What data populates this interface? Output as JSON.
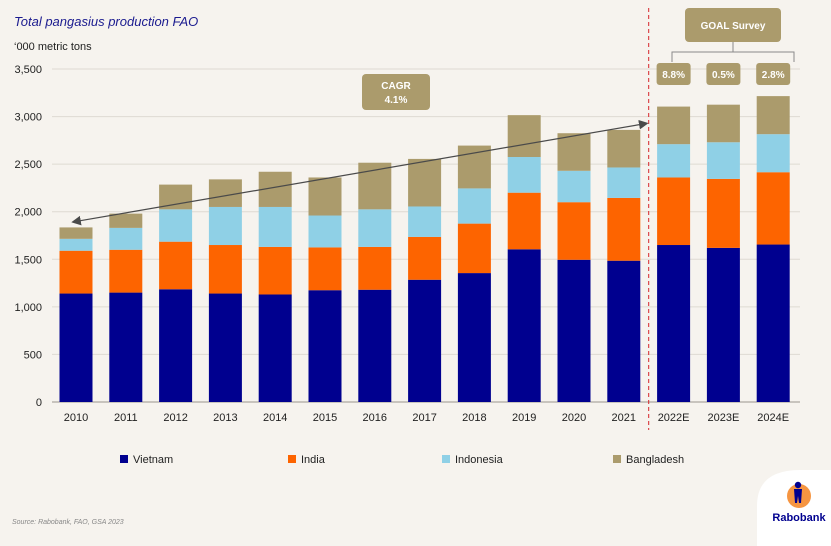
{
  "chart_data": {
    "type": "bar",
    "stacked": true,
    "title": "Total pangasius production FAO",
    "ylabel": "‘000 metric tons",
    "ylim": [
      0,
      3500
    ],
    "yticks": [
      0,
      500,
      1000,
      1500,
      2000,
      2500,
      3000,
      3500
    ],
    "ytick_labels": [
      "0",
      "500",
      "1,000",
      "1,500",
      "2,000",
      "2,500",
      "3,000",
      "3,500"
    ],
    "grid": true,
    "categories": [
      "2010",
      "2011",
      "2012",
      "2013",
      "2014",
      "2015",
      "2016",
      "2017",
      "2018",
      "2019",
      "2020",
      "2021",
      "2022E",
      "2023E",
      "2024E"
    ],
    "series": [
      {
        "name": "Vietnam",
        "color": "#00008f",
        "values": [
          1140,
          1150,
          1185,
          1140,
          1130,
          1175,
          1180,
          1285,
          1355,
          1605,
          1495,
          1485,
          1650,
          1620,
          1655
        ]
      },
      {
        "name": "India",
        "color": "#fd6400",
        "values": [
          450,
          450,
          500,
          510,
          500,
          450,
          450,
          450,
          520,
          595,
          605,
          660,
          710,
          725,
          760
        ]
      },
      {
        "name": "Indonesia",
        "color": "#8fd0e6",
        "values": [
          125,
          230,
          340,
          400,
          420,
          335,
          395,
          320,
          370,
          375,
          330,
          320,
          350,
          385,
          400
        ]
      },
      {
        "name": "Bangladesh",
        "color": "#ab9b6c",
        "values": [
          120,
          150,
          260,
          290,
          370,
          400,
          490,
          500,
          450,
          440,
          395,
          395,
          395,
          395,
          400
        ]
      }
    ],
    "legend_position": "bottom",
    "annotations": {
      "cagr_label": "CAGR",
      "cagr_value": "4.1%",
      "goal_label": "GOAL Survey",
      "growth_labels": [
        "8.8%",
        "0.5%",
        "2.8%"
      ]
    },
    "source": "Source: Rabobank, FAO, GSA 2023"
  },
  "logo": {
    "name": "Rabobank"
  },
  "colors": {
    "badge": "#ab9b6c",
    "title": "#1b1b8f",
    "divider": "#d6262c",
    "grid": "#dedad2"
  }
}
